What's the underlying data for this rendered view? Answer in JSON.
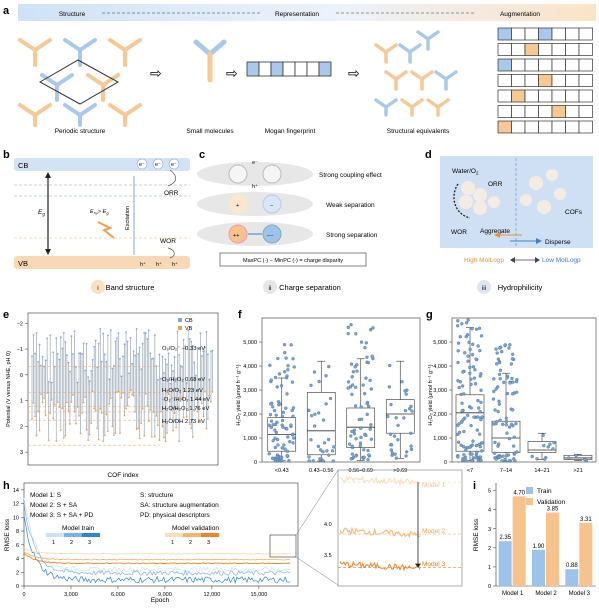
{
  "panel_a": {
    "letter": "a",
    "header": [
      "Structure",
      "Representation",
      "Augmentation"
    ],
    "captions": [
      "Periodic structure",
      "Small molecules",
      "Mogan fingerprint",
      "Structural equivalents"
    ]
  },
  "panel_b": {
    "letter": "b",
    "cb": "CB",
    "vb": "VB",
    "eg": "E",
    "eg_sub": "g",
    "ehv": "E",
    "ehv_sub": "hν",
    "ehv_cmp": "> E",
    "ehv_cmp_sub": "g",
    "excitation": "Excitation",
    "orr": "ORR",
    "wor": "WOR",
    "electron": "e⁻",
    "hole": "h⁺",
    "roman": "i",
    "caption": "Band structure"
  },
  "panel_c": {
    "letter": "c",
    "rows": [
      "Strong coupling effect",
      "Weak separation",
      "Strong separation"
    ],
    "formula": "MaxPC (·) − MinPC (·) = charge disparity",
    "electron": "e⁻",
    "hole": "h⁺",
    "roman": "ii",
    "caption": "Charge separation"
  },
  "panel_d": {
    "letter": "d",
    "water": "Water/O",
    "water_sub": "2",
    "orr": "ORR",
    "wor": "WOR",
    "cofs": "COFs",
    "aggregate": "Aggregate",
    "disperse": "Disperse",
    "high": "High MolLogp",
    "low": "Low MolLogp",
    "roman": "iii",
    "caption": "Hydrophilicity",
    "colors": {
      "high": "#e8913a",
      "low": "#3a7fd0"
    }
  },
  "panel_e": {
    "letter": "e",
    "ylabel": "Potential (V versus NHE, pH 0)",
    "xlabel": "COF index",
    "legend": [
      "CB",
      "VB"
    ],
    "yticks": [
      "−2",
      "−1",
      "0",
      "1",
      "2",
      "3"
    ],
    "levels": [
      "O₂/O₂⁻ −0.33 eV",
      "O₂/H₂O₂ 0.68 eV",
      "H₂O/O₂ 1.23 eV",
      "·O₂⁻/H₂O₂ 1.44 eV",
      "H₂O/H₂O₂ 1.76 eV",
      "H₂O/OH 2.73 eV"
    ]
  },
  "panel_f": {
    "letter": "f",
    "ylabel": "H₂O₂ yield (μmol h⁻¹ g⁻¹)",
    "yticks": [
      "0",
      "1,000",
      "2,000",
      "3,000",
      "4,000",
      "5,000"
    ],
    "categories": [
      "<0.43",
      "0.43–0.56",
      "0.56–0.69",
      ">0.69"
    ]
  },
  "panel_g": {
    "letter": "g",
    "ylabel": "H₂O₂ yield (μmol h⁻¹ g⁻¹)",
    "yticks": [
      "0",
      "1,000",
      "2,000",
      "3,000",
      "4,000",
      "5,000"
    ],
    "categories": [
      "<7",
      "7–14",
      "14–21",
      ">21"
    ]
  },
  "panel_h": {
    "letter": "h",
    "ylabel": "RMSE loss",
    "xlabel": "Epoch",
    "yticks": [
      "0",
      "2",
      "4",
      "6",
      "8",
      "10",
      "12",
      "14"
    ],
    "xticks": [
      "0",
      "3,000",
      "6,000",
      "9,000",
      "12,000",
      "15,000"
    ],
    "models": [
      "Model 1: S",
      "Model 2: S + SA",
      "Model 3: S + SA + PD"
    ],
    "abbrev": [
      "S: structure",
      "SA: structure augmentation",
      "PD: physical descriptors"
    ],
    "train_label": "Model train",
    "val_label": "Model validation",
    "nums": [
      "1",
      "2",
      "3"
    ],
    "inset_yticks": [
      "4.0",
      "3.5"
    ],
    "inset_models": [
      "Model 1",
      "Model 2",
      "Model 3"
    ]
  },
  "panel_i": {
    "letter": "i",
    "ylabel": "RMSE loss",
    "yticks": [
      "0",
      "1",
      "2",
      "3",
      "4",
      "5"
    ],
    "legend": [
      "Train",
      "Validation"
    ],
    "categories": [
      "Model 1",
      "Model 2",
      "Model 3"
    ],
    "colors": {
      "train": "#9ec3ea",
      "validation": "#f7c38d"
    }
  },
  "chart_data": [
    {
      "type": "bar",
      "panel": "i",
      "categories": [
        "Model 1",
        "Model 2",
        "Model 3"
      ],
      "series": [
        {
          "name": "Train",
          "values": [
            2.35,
            1.9,
            0.88
          ],
          "labels": [
            "2.35",
            "1.90",
            "0.88"
          ]
        },
        {
          "name": "Validation",
          "values": [
            4.7,
            3.85,
            3.31
          ],
          "labels": [
            "4.70",
            "3.85",
            "3.31"
          ]
        }
      ],
      "ylabel": "RMSE loss",
      "ylim": [
        0,
        5.4
      ]
    },
    {
      "type": "box",
      "panel": "f",
      "categories": [
        "<0.43",
        "0.43–0.56",
        "0.56–0.69",
        ">0.69"
      ],
      "boxes": [
        {
          "q1": 450,
          "median": 1150,
          "q3": 1850,
          "wlo": 50,
          "whi": 3500,
          "max": 5200
        },
        {
          "q1": 300,
          "median": 1300,
          "q3": 2900,
          "wlo": 40,
          "whi": 4200,
          "max": 4200
        },
        {
          "q1": 600,
          "median": 1450,
          "q3": 2250,
          "wlo": 60,
          "whi": 4300,
          "max": 5800
        },
        {
          "q1": 1200,
          "median": 2000,
          "q3": 2600,
          "wlo": 150,
          "whi": 4200,
          "max": 4200
        }
      ],
      "ylabel": "H₂O₂ yield (μmol h⁻¹ g⁻¹)",
      "ylim": [
        0,
        6000
      ]
    },
    {
      "type": "box",
      "panel": "g",
      "categories": [
        "<7",
        "7–14",
        "14–21",
        ">21"
      ],
      "boxes": [
        {
          "q1": 450,
          "median": 2050,
          "q3": 2800,
          "wlo": 50,
          "whi": 5600,
          "max": 6000
        },
        {
          "q1": 400,
          "median": 1000,
          "q3": 1700,
          "wlo": 40,
          "whi": 3700,
          "max": 5000
        },
        {
          "q1": 400,
          "median": 500,
          "q3": 850,
          "wlo": 100,
          "whi": 1200,
          "max": 1250
        },
        {
          "q1": 100,
          "median": 170,
          "q3": 280,
          "wlo": 60,
          "whi": 320,
          "max": 320
        }
      ],
      "ylabel": "H₂O₂ yield (μmol h⁻¹ g⁻¹)",
      "ylim": [
        0,
        6000
      ]
    },
    {
      "type": "line",
      "panel": "h",
      "x_range": [
        0,
        17500
      ],
      "ylim": [
        0,
        15
      ],
      "series": [
        {
          "name": "Model train 1",
          "final": 2.4
        },
        {
          "name": "Model train 2",
          "final": 1.9
        },
        {
          "name": "Model train 3",
          "final": 0.9
        },
        {
          "name": "Model validation 1",
          "final": 4.7
        },
        {
          "name": "Model validation 2",
          "final": 3.85
        },
        {
          "name": "Model validation 3",
          "final": 3.3
        }
      ],
      "ylabel": "RMSE loss",
      "xlabel": "Epoch"
    }
  ]
}
